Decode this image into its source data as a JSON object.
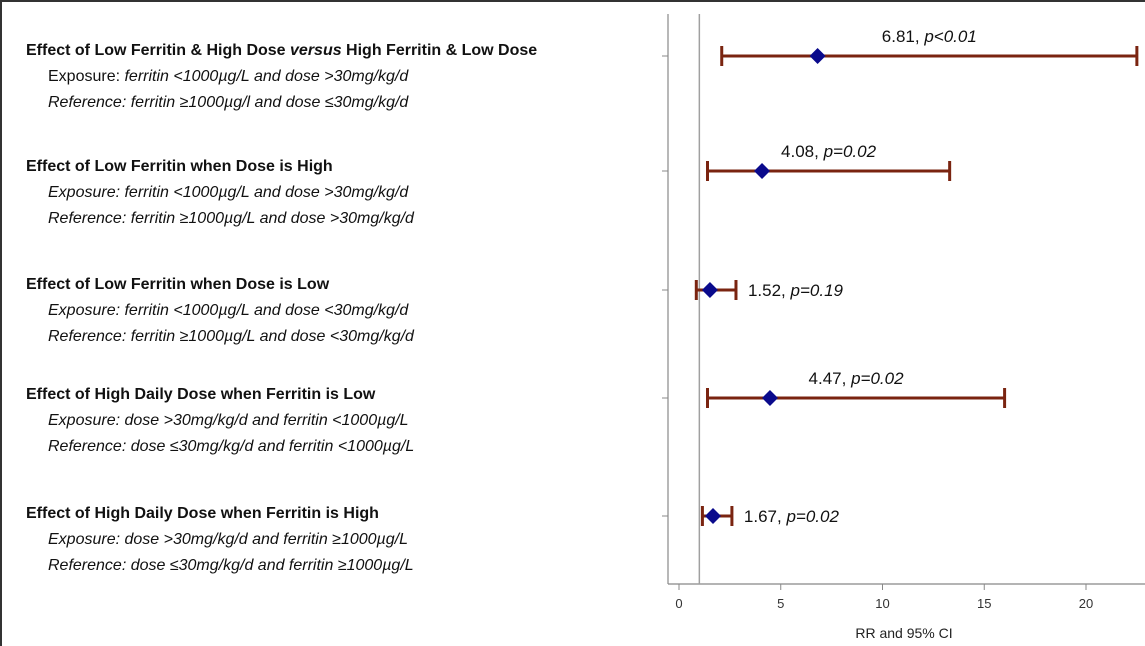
{
  "rows": [
    {
      "title_parts": [
        "Effect of Low Ferritin & High Dose ",
        "versus",
        " High Ferritin & Low Dose"
      ],
      "exposure_prefix": "Exposure: ",
      "exposure_body": "ferritin <1000µg/L and dose >30mg/kg/d",
      "reference_prefix": "Reference: ",
      "reference_body": "ferritin ≥1000µg/l and dose ≤30mg/kg/d",
      "label_value": "6.81",
      "label_p": "p<0.01"
    },
    {
      "title_parts": [
        "Effect of Low Ferritin when Dose is High",
        "",
        ""
      ],
      "exposure_prefix": "",
      "exposure_body": "Exposure: ferritin <1000µg/L and dose >30mg/kg/d",
      "reference_prefix": "",
      "reference_body": "Reference: ferritin ≥1000µg/L and dose >30mg/kg/d",
      "label_value": "4.08",
      "label_p": "p=0.02"
    },
    {
      "title_parts": [
        "Effect of Low Ferritin when Dose is Low",
        "",
        ""
      ],
      "exposure_prefix": "",
      "exposure_body": "Exposure: ferritin <1000µg/L and dose <30mg/kg/d",
      "reference_prefix": "",
      "reference_body": "Reference: ferritin ≥1000µg/L and dose <30mg/kg/d",
      "label_value": "1.52",
      "label_p": "p=0.19"
    },
    {
      "title_parts": [
        "Effect of High Daily Dose when Ferritin is Low",
        "",
        ""
      ],
      "exposure_prefix": "",
      "exposure_body": "Exposure: dose >30mg/kg/d and ferritin <1000µg/L",
      "reference_prefix": "",
      "reference_body": "Reference: dose ≤30mg/kg/d and ferritin <1000µg/L",
      "label_value": "4.47",
      "label_p": "p=0.02"
    },
    {
      "title_parts": [
        "Effect of High Daily Dose when Ferritin is High",
        "",
        ""
      ],
      "exposure_prefix": "",
      "exposure_body": "Exposure: dose >30mg/kg/d and ferritin ≥1000µg/L",
      "reference_prefix": "",
      "reference_body": "Reference: dose ≤30mg/kg/d and ferritin ≥1000µg/L",
      "label_value": "1.67",
      "label_p": "p=0.02"
    }
  ],
  "chart_data": {
    "type": "scatter",
    "subtype": "forest-plot",
    "xlabel": "RR and 95% CI",
    "xlim": [
      -0.4,
      22.5
    ],
    "xticks": [
      0,
      5,
      10,
      15,
      20
    ],
    "reference_line": 1,
    "grid": false,
    "estimates": [
      6.81,
      4.08,
      1.52,
      4.47,
      1.67
    ],
    "ci_low": [
      2.1,
      1.4,
      0.85,
      1.4,
      1.15
    ],
    "ci_high": [
      22.5,
      13.3,
      2.8,
      16.0,
      2.6
    ],
    "p_values": [
      "p<0.01",
      "p=0.02",
      "p=0.19",
      "p=0.02",
      "p=0.02"
    ],
    "colors": {
      "marker": "#0a0a8c",
      "ci": "#7a2410",
      "axis": "#888888",
      "refline": "#a0a0a0"
    }
  }
}
